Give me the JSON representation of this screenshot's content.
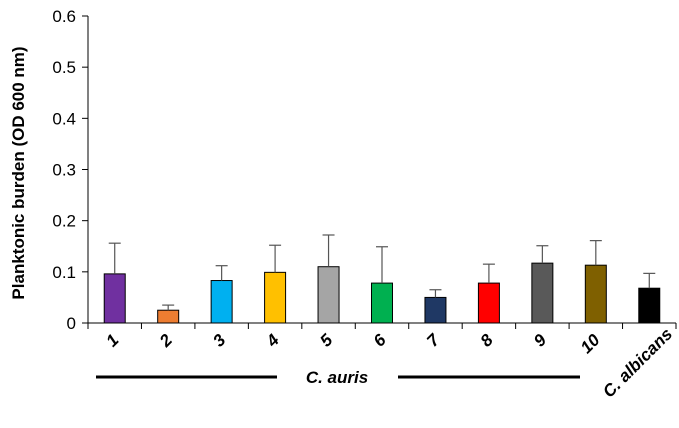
{
  "chart_data": {
    "type": "bar",
    "title": "",
    "xlabel": "",
    "ylabel": "Planktonic burden (OD 600 nm)",
    "ylim": [
      0,
      0.6
    ],
    "yticks": [
      "0",
      "0.1",
      "0.2",
      "0.3",
      "0.4",
      "0.5",
      "0.6"
    ],
    "grid": false,
    "categories": [
      "1",
      "2",
      "3",
      "4",
      "5",
      "6",
      "7",
      "8",
      "9",
      "10",
      "C. albicans"
    ],
    "values": [
      0.096,
      0.025,
      0.083,
      0.099,
      0.11,
      0.078,
      0.05,
      0.078,
      0.117,
      0.113,
      0.068
    ],
    "errors": [
      0.06,
      0.01,
      0.029,
      0.053,
      0.062,
      0.071,
      0.015,
      0.037,
      0.034,
      0.048,
      0.029
    ],
    "colors": [
      "#7030a0",
      "#ed7d31",
      "#00b0f0",
      "#ffc000",
      "#a5a5a5",
      "#00b050",
      "#1f3864",
      "#ff0000",
      "#595959",
      "#7f6000",
      "#000000"
    ],
    "group_label": "C. auris"
  }
}
